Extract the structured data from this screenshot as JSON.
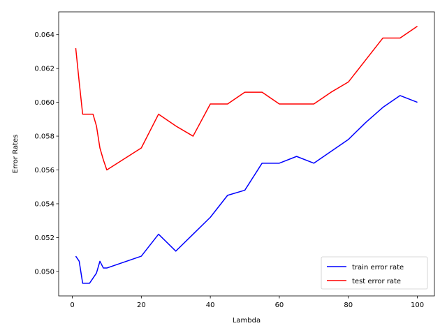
{
  "chart_data": {
    "type": "line",
    "title": "",
    "xlabel": "Lambda",
    "ylabel": "Error Rates",
    "xlim": [
      -3.95,
      104.95
    ],
    "ylim": [
      0.04855,
      0.06535
    ],
    "xticks": [
      0,
      20,
      40,
      60,
      80,
      100
    ],
    "xtick_labels": [
      "0",
      "20",
      "40",
      "60",
      "80",
      "100"
    ],
    "yticks": [
      0.05,
      0.052,
      0.054,
      0.056,
      0.058,
      0.06,
      0.062,
      0.064
    ],
    "ytick_labels": [
      "0.050",
      "0.052",
      "0.054",
      "0.056",
      "0.058",
      "0.060",
      "0.062",
      "0.064"
    ],
    "grid": false,
    "legend_position": "lower-right",
    "series": [
      {
        "name": "train error rate",
        "color": "#0000ff",
        "x": [
          1,
          2,
          3,
          4,
          5,
          6,
          7,
          8,
          9,
          10,
          20,
          25,
          30,
          35,
          40,
          45,
          50,
          55,
          60,
          65,
          70,
          75,
          80,
          85,
          90,
          95,
          100
        ],
        "y": [
          0.0509,
          0.0506,
          0.0493,
          0.0493,
          0.0493,
          0.0496,
          0.0499,
          0.0506,
          0.0502,
          0.0502,
          0.0509,
          0.0522,
          0.0512,
          0.0522,
          0.0532,
          0.0545,
          0.0548,
          0.0564,
          0.0564,
          0.0568,
          0.0564,
          0.0571,
          0.0578,
          0.0588,
          0.0597,
          0.0604,
          0.06
        ]
      },
      {
        "name": "test error rate",
        "color": "#ff0000",
        "x": [
          1,
          2,
          3,
          4,
          5,
          6,
          7,
          8,
          9,
          10,
          20,
          25,
          30,
          35,
          40,
          45,
          50,
          55,
          60,
          65,
          70,
          75,
          80,
          85,
          90,
          95,
          100
        ],
        "y": [
          0.0632,
          0.0612,
          0.0593,
          0.0593,
          0.0593,
          0.0593,
          0.0586,
          0.0573,
          0.0566,
          0.056,
          0.0573,
          0.0593,
          0.0586,
          0.058,
          0.0599,
          0.0599,
          0.0606,
          0.0606,
          0.0599,
          0.0599,
          0.0599,
          0.0606,
          0.0612,
          0.0625,
          0.0638,
          0.0638,
          0.0645
        ]
      }
    ]
  }
}
